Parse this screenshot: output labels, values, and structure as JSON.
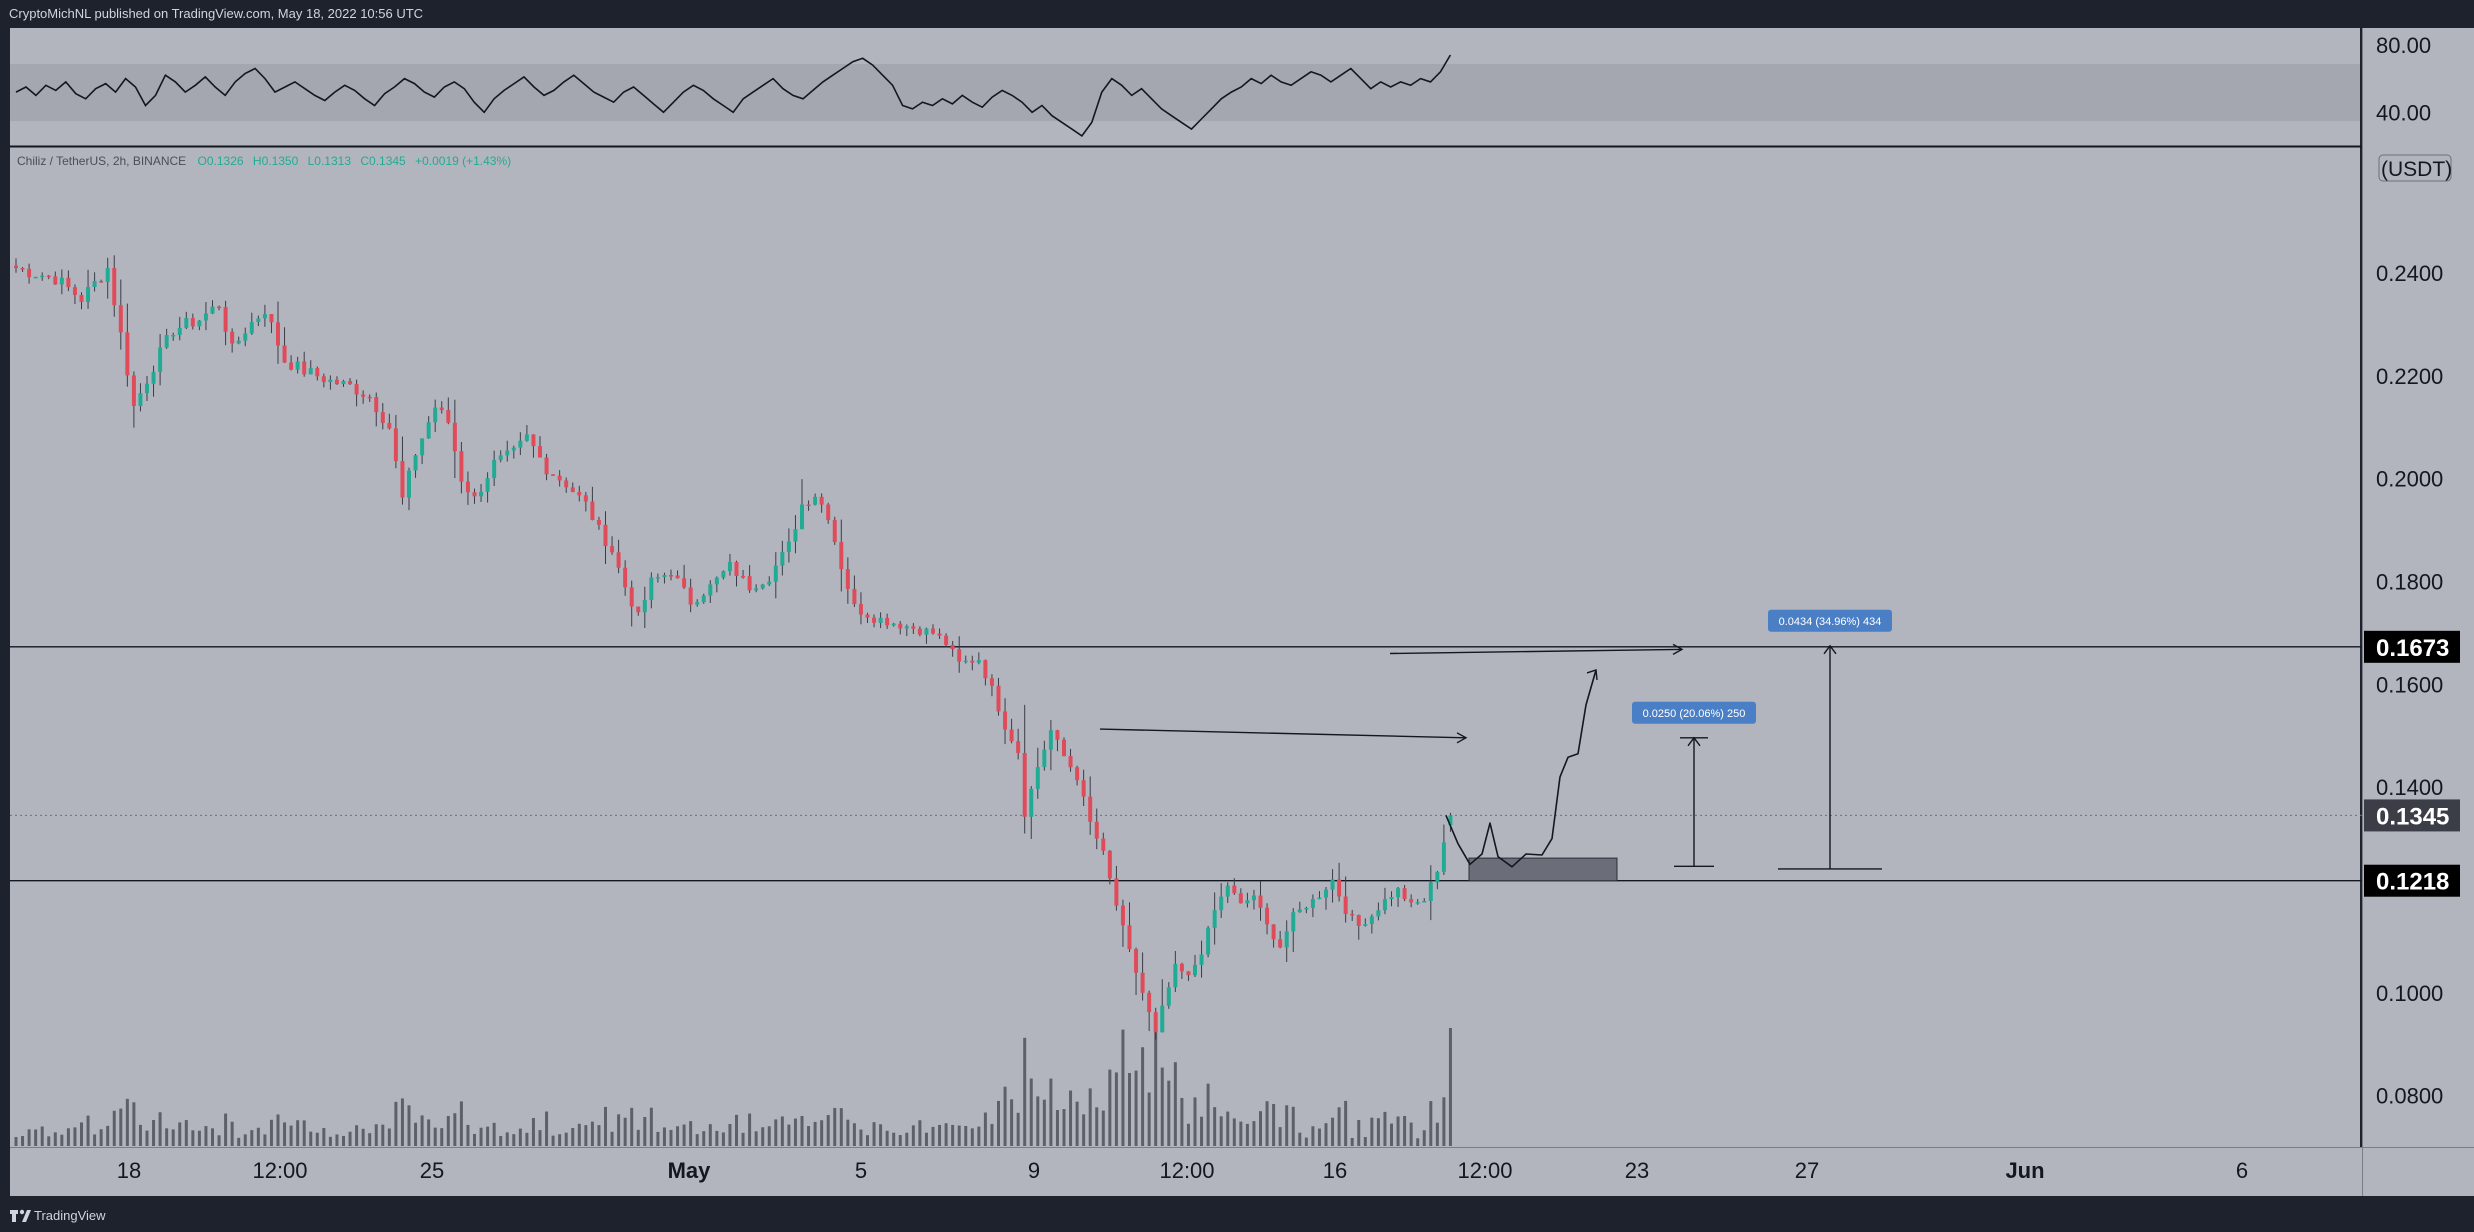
{
  "header": {
    "publisher": "CryptoMichNL published on TradingView.com, May 18, 2022 10:56 UTC"
  },
  "footer": {
    "brand": "TradingView",
    "logo_icon": "tradingview-logo-icon"
  },
  "colors": {
    "frame": "#1e222d",
    "pane": "#b2b5be",
    "rsi_band": "#a4a7b0",
    "up": "#22ab94",
    "down": "#e04b5a",
    "wick": "#3a3d48",
    "line": "#131722",
    "label_box": "#000000",
    "measure_box": "#4a7fc6",
    "zone_box": "#6b6e78"
  },
  "legend": {
    "symbol": "Chiliz / TetherUS, 2h, BINANCE",
    "open": "O0.1326",
    "high": "H0.1350",
    "low": "L0.1313",
    "close": "C0.1345",
    "change": "+0.0019 (+1.43%)"
  },
  "chart_data": [
    {
      "type": "line",
      "name": "RSI",
      "y_ticks": [
        "80.00",
        "40.00"
      ],
      "ylim": [
        20,
        90
      ],
      "band": [
        30,
        70
      ],
      "values": [
        52,
        55,
        50,
        56,
        53,
        58,
        51,
        48,
        54,
        57,
        52,
        60,
        55,
        44,
        50,
        62,
        58,
        52,
        56,
        61,
        55,
        50,
        58,
        63,
        66,
        60,
        52,
        55,
        58,
        54,
        50,
        47,
        52,
        56,
        53,
        48,
        44,
        51,
        55,
        60,
        57,
        52,
        49,
        55,
        58,
        54,
        46,
        40,
        48,
        53,
        57,
        61,
        55,
        50,
        53,
        58,
        62,
        57,
        52,
        49,
        46,
        52,
        55,
        50,
        45,
        40,
        46,
        52,
        56,
        53,
        48,
        44,
        40,
        48,
        52,
        56,
        60,
        54,
        50,
        48,
        53,
        58,
        62,
        66,
        70,
        72,
        68,
        62,
        56,
        44,
        42,
        46,
        44,
        48,
        45,
        50,
        46,
        43,
        49,
        53,
        50,
        46,
        40,
        44,
        38,
        34,
        30,
        26,
        34,
        52,
        60,
        56,
        50,
        54,
        48,
        42,
        38,
        34,
        30,
        36,
        42,
        48,
        52,
        55,
        60,
        57,
        62,
        58,
        56,
        60,
        64,
        62,
        58,
        62,
        66,
        60,
        54,
        58,
        55,
        58,
        56,
        60,
        58,
        64,
        74
      ]
    },
    {
      "type": "candlestick",
      "series_name": "Chiliz / TetherUS, 2h, BINANCE",
      "unit": "(USDT)",
      "ylim": [
        0.07,
        0.262
      ],
      "y_ticks": [
        "0.2400",
        "0.2200",
        "0.2000",
        "0.1800",
        "0.1600",
        "0.1400",
        "0.1000",
        "0.0800"
      ],
      "x_ticks": [
        "18",
        "12:00",
        "25",
        "May",
        "5",
        "9",
        "12:00",
        "16",
        "12:00",
        "23",
        "27",
        "Jun",
        "6"
      ],
      "x_label_bold": [
        "May",
        "Jun"
      ],
      "keypoints": [
        [
          0,
          0.241
        ],
        [
          6,
          0.239
        ],
        [
          10,
          0.235
        ],
        [
          14,
          0.241
        ],
        [
          16,
          0.228
        ],
        [
          18,
          0.214
        ],
        [
          21,
          0.222
        ],
        [
          24,
          0.229
        ],
        [
          28,
          0.231
        ],
        [
          31,
          0.234
        ],
        [
          33,
          0.225
        ],
        [
          35,
          0.229
        ],
        [
          38,
          0.233
        ],
        [
          41,
          0.223
        ],
        [
          44,
          0.221
        ],
        [
          48,
          0.219
        ],
        [
          51,
          0.218
        ],
        [
          54,
          0.216
        ],
        [
          57,
          0.21
        ],
        [
          59,
          0.196
        ],
        [
          61,
          0.205
        ],
        [
          64,
          0.214
        ],
        [
          66,
          0.211
        ],
        [
          68,
          0.2
        ],
        [
          70,
          0.196
        ],
        [
          73,
          0.203
        ],
        [
          76,
          0.205
        ],
        [
          78,
          0.208
        ],
        [
          81,
          0.202
        ],
        [
          84,
          0.199
        ],
        [
          87,
          0.195
        ],
        [
          89,
          0.19
        ],
        [
          91,
          0.186
        ],
        [
          93,
          0.179
        ],
        [
          95,
          0.173
        ],
        [
          97,
          0.18
        ],
        [
          100,
          0.182
        ],
        [
          103,
          0.176
        ],
        [
          106,
          0.179
        ],
        [
          109,
          0.183
        ],
        [
          112,
          0.179
        ],
        [
          115,
          0.181
        ],
        [
          118,
          0.187
        ],
        [
          120,
          0.195
        ],
        [
          122,
          0.197
        ],
        [
          124,
          0.193
        ],
        [
          126,
          0.183
        ],
        [
          128,
          0.175
        ],
        [
          131,
          0.173
        ],
        [
          134,
          0.172
        ],
        [
          137,
          0.171
        ],
        [
          140,
          0.17
        ],
        [
          142,
          0.168
        ],
        [
          144,
          0.164
        ],
        [
          147,
          0.165
        ],
        [
          149,
          0.159
        ],
        [
          151,
          0.152
        ],
        [
          153,
          0.147
        ],
        [
          154,
          0.135
        ],
        [
          156,
          0.144
        ],
        [
          158,
          0.151
        ],
        [
          160,
          0.146
        ],
        [
          162,
          0.142
        ],
        [
          164,
          0.133
        ],
        [
          166,
          0.127
        ],
        [
          168,
          0.117
        ],
        [
          170,
          0.108
        ],
        [
          172,
          0.1
        ],
        [
          174,
          0.092
        ],
        [
          175,
          0.097
        ],
        [
          177,
          0.105
        ],
        [
          179,
          0.103
        ],
        [
          181,
          0.108
        ],
        [
          183,
          0.116
        ],
        [
          185,
          0.121
        ],
        [
          187,
          0.117
        ],
        [
          189,
          0.119
        ],
        [
          191,
          0.113
        ],
        [
          193,
          0.109
        ],
        [
          195,
          0.115
        ],
        [
          197,
          0.117
        ],
        [
          199,
          0.119
        ],
        [
          201,
          0.122
        ],
        [
          203,
          0.116
        ],
        [
          205,
          0.113
        ],
        [
          207,
          0.115
        ],
        [
          209,
          0.118
        ],
        [
          211,
          0.12
        ],
        [
          213,
          0.117
        ],
        [
          215,
          0.118
        ],
        [
          217,
          0.124
        ],
        [
          219,
          0.135
        ]
      ],
      "last_candle": {
        "open": 0.1326,
        "high": 0.135,
        "low": 0.1313,
        "close": 0.1345
      },
      "horizontal_levels": [
        0.1673,
        0.1218
      ],
      "price_labels": [
        {
          "value": 0.1673,
          "text": "0.1673",
          "style": "black"
        },
        {
          "value": 0.1345,
          "text": "0.1345",
          "style": "dark"
        },
        {
          "value": 0.1218,
          "text": "0.1218",
          "style": "black"
        }
      ],
      "measurements": [
        {
          "text": "0.0250 (20.06%) 250",
          "from": 0.1246,
          "to": 0.1496
        },
        {
          "text": "0.0434 (34.96%) 434",
          "from": 0.1241,
          "to": 0.1675
        }
      ],
      "zone": {
        "from": 0.1218,
        "to": 0.1262
      }
    }
  ]
}
